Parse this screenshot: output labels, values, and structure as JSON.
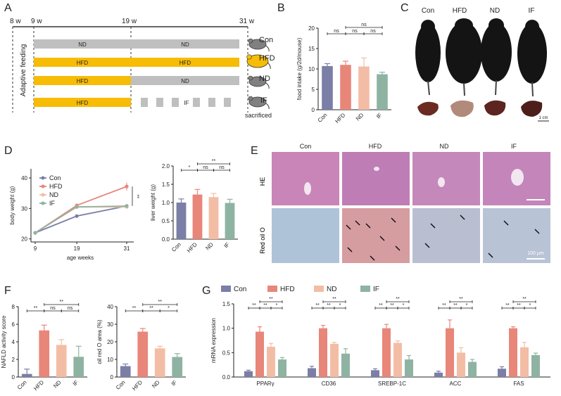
{
  "colors": {
    "con": "#7B7EA6",
    "hfd": "#E8867A",
    "nd": "#F3BDA5",
    "if": "#8FB3A2",
    "yellow": "#F7BC05",
    "gray": "#BFBFBF",
    "text": "#333333"
  },
  "panel_letters": [
    "A",
    "B",
    "C",
    "D",
    "E",
    "F",
    "G"
  ],
  "panelA": {
    "weeks": [
      "8 w",
      "9 w",
      "19 w",
      "31 w"
    ],
    "adaptive_label": "Adaptive feeding",
    "rows": [
      {
        "seg1": "ND",
        "seg2": "ND",
        "group": "Con",
        "seg2_type": "gray"
      },
      {
        "seg1": "HFD",
        "seg2": "HFD",
        "group": "HFD",
        "seg2_type": "yellow"
      },
      {
        "seg1": "HFD",
        "seg2": "ND",
        "group": "ND",
        "seg2_type": "gray"
      },
      {
        "seg1": "HFD",
        "seg2": "IF",
        "group": "IF",
        "seg2_type": "dash"
      }
    ],
    "sacrificed": "sacrificed"
  },
  "panelC": {
    "labels": [
      "Con",
      "HFD",
      "ND",
      "IF"
    ],
    "scale": "1 cm"
  },
  "panelE": {
    "cols": [
      "Con",
      "HFD",
      "ND",
      "IF"
    ],
    "rows": [
      "HE",
      "Red oil O"
    ],
    "scale": "100 μm"
  },
  "panelG_legend": [
    "Con",
    "HFD",
    "ND",
    "IF"
  ],
  "chart_data": [
    {
      "id": "B",
      "type": "bar",
      "title": "",
      "ylabel": "food intake (g/2d/mouse)",
      "categories": [
        "Con",
        "HFD",
        "ND",
        "IF"
      ],
      "values": [
        10.7,
        11.0,
        10.6,
        8.7
      ],
      "errors": [
        0.6,
        0.9,
        2.1,
        0.5
      ],
      "ylim": [
        0,
        20
      ],
      "yticks": [
        "0",
        "5",
        "10",
        "15",
        "20"
      ],
      "sig": [
        {
          "from": 0,
          "to": 1,
          "label": "ns",
          "level": 0
        },
        {
          "from": 1,
          "to": 2,
          "label": "ns",
          "level": 0
        },
        {
          "from": 2,
          "to": 3,
          "label": "ns",
          "level": 0
        },
        {
          "from": 1,
          "to": 3,
          "label": "ns",
          "level": 1
        }
      ]
    },
    {
      "id": "D1",
      "type": "line",
      "xlabel": "age weeks",
      "ylabel": "body weight (g)",
      "x": [
        9,
        19,
        31
      ],
      "xticks": [
        "9",
        "19",
        "31"
      ],
      "ylim": [
        19,
        43
      ],
      "yticks": [
        "20",
        "30",
        "40"
      ],
      "series": [
        {
          "name": "Con",
          "values": [
            22,
            27.5,
            30.8
          ],
          "errors": [
            0.3,
            0.4,
            0.6
          ]
        },
        {
          "name": "HFD",
          "values": [
            22,
            31,
            37.2
          ],
          "errors": [
            0.3,
            0.6,
            1.3
          ]
        },
        {
          "name": "ND",
          "values": [
            22,
            30.5,
            30.5
          ],
          "errors": [
            0.3,
            0.5,
            0.6
          ]
        },
        {
          "name": "IF",
          "values": [
            22,
            30.5,
            30.8
          ],
          "errors": [
            0.3,
            0.5,
            0.6
          ]
        }
      ],
      "annotation": "**"
    },
    {
      "id": "D2",
      "type": "bar",
      "ylabel": "liver weight (g)",
      "categories": [
        "Con",
        "HFD",
        "ND",
        "IF"
      ],
      "values": [
        1.0,
        1.22,
        1.15,
        0.99
      ],
      "errors": [
        0.1,
        0.14,
        0.1,
        0.1
      ],
      "ylim": [
        0,
        2.0
      ],
      "yticks": [
        "0.0",
        "0.5",
        "1.0",
        "1.5",
        "2.0"
      ],
      "sig": [
        {
          "from": 0,
          "to": 1,
          "label": "*",
          "level": 0
        },
        {
          "from": 1,
          "to": 2,
          "label": "ns",
          "level": 0
        },
        {
          "from": 2,
          "to": 3,
          "label": "ns",
          "level": 0
        },
        {
          "from": 1,
          "to": 3,
          "label": "**",
          "level": 1
        }
      ]
    },
    {
      "id": "F1",
      "type": "bar",
      "ylabel": "NAFLD activity score",
      "categories": [
        "Con",
        "HFD",
        "ND",
        "IF"
      ],
      "values": [
        0.35,
        5.3,
        3.65,
        2.3
      ],
      "errors": [
        0.55,
        0.6,
        0.6,
        1.2
      ],
      "ylim": [
        0,
        8
      ],
      "yticks": [
        "0",
        "2",
        "4",
        "6",
        "8"
      ],
      "sig": [
        {
          "from": 0,
          "to": 1,
          "label": "**",
          "level": 0
        },
        {
          "from": 1,
          "to": 2,
          "label": "ns",
          "level": 0
        },
        {
          "from": 2,
          "to": 3,
          "label": "ns",
          "level": 0
        },
        {
          "from": 1,
          "to": 3,
          "label": "**",
          "level": 1
        }
      ]
    },
    {
      "id": "F2",
      "type": "bar",
      "ylabel": "oil red O area (%)",
      "categories": [
        "Con",
        "HFD",
        "ND",
        "IF"
      ],
      "values": [
        6.2,
        25.8,
        16.3,
        11.4
      ],
      "errors": [
        1.2,
        1.8,
        1.2,
        1.9
      ],
      "ylim": [
        0,
        40
      ],
      "yticks": [
        "0",
        "10",
        "20",
        "30",
        "40"
      ],
      "sig": [
        {
          "from": 0,
          "to": 1,
          "label": "**",
          "level": 0
        },
        {
          "from": 1,
          "to": 2,
          "label": "**",
          "level": 0
        },
        {
          "from": 2,
          "to": 3,
          "label": "*",
          "level": 0
        },
        {
          "from": 1,
          "to": 3,
          "label": "**",
          "level": 1
        }
      ]
    },
    {
      "id": "G",
      "type": "bar",
      "ylabel": "mRNA expression",
      "categories": [
        "PPARγ",
        "CD36",
        "SREBP-1C",
        "ACC",
        "FAS"
      ],
      "series": [
        {
          "name": "Con",
          "values": [
            0.12,
            0.18,
            0.14,
            0.09,
            0.17
          ],
          "errors": [
            0.02,
            0.04,
            0.03,
            0.03,
            0.04
          ]
        },
        {
          "name": "HFD",
          "values": [
            0.93,
            1.0,
            1.0,
            1.0,
            1.0
          ],
          "errors": [
            0.1,
            0.06,
            0.08,
            0.17,
            0.03
          ]
        },
        {
          "name": "ND",
          "values": [
            0.62,
            0.68,
            0.7,
            0.5,
            0.61
          ],
          "errors": [
            0.07,
            0.03,
            0.04,
            0.1,
            0.1
          ]
        },
        {
          "name": "IF",
          "values": [
            0.36,
            0.48,
            0.36,
            0.31,
            0.45
          ],
          "errors": [
            0.04,
            0.1,
            0.08,
            0.05,
            0.04
          ]
        }
      ],
      "ylim": [
        0,
        1.5
      ],
      "yticks": [
        "0.0",
        "0.5",
        "1.0",
        "1.5"
      ],
      "sig": [
        {
          "from": 0,
          "to": 1,
          "label": "**",
          "level": 0
        },
        {
          "from": 1,
          "to": 2,
          "label": "**",
          "level": 0
        },
        {
          "from": 2,
          "to": 3,
          "label": "*",
          "level": 0
        },
        {
          "from": 1,
          "to": 3,
          "label": "**",
          "level": 1
        }
      ]
    }
  ]
}
